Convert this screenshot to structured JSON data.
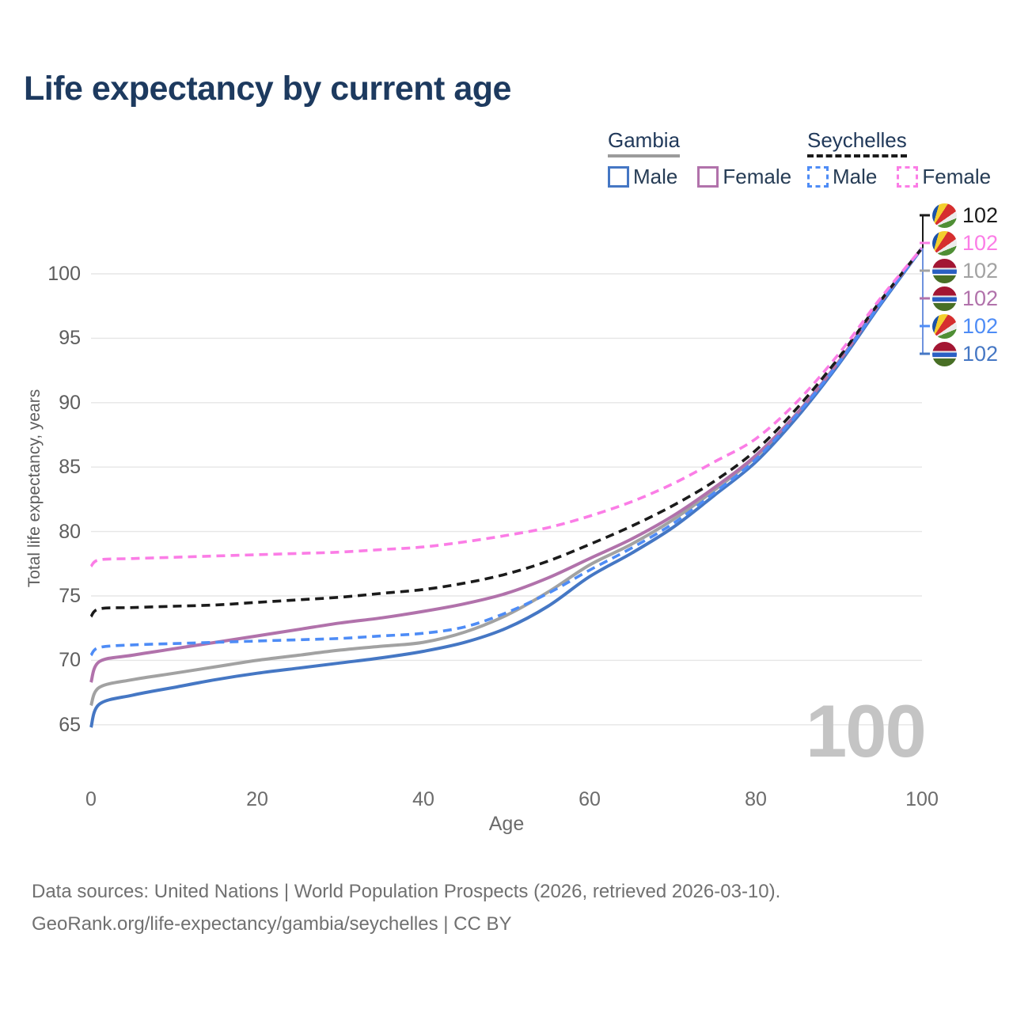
{
  "title": "Life expectancy by current age",
  "legend": {
    "groups": [
      {
        "name": "Gambia",
        "underline": {
          "style": "solid",
          "color": "#9b9b9b"
        },
        "items": [
          {
            "label": "Male",
            "style": "solid",
            "color": "#4577c4"
          },
          {
            "label": "Female",
            "style": "solid",
            "color": "#b172ab"
          }
        ]
      },
      {
        "name": "Seychelles",
        "underline": {
          "style": "dashed",
          "color": "#1b1b1b"
        },
        "items": [
          {
            "label": "Male",
            "style": "dashed",
            "color": "#4e8cf6"
          },
          {
            "label": "Female",
            "style": "dashed",
            "color": "#fb7de6"
          }
        ]
      }
    ]
  },
  "watermark": "100",
  "footer": {
    "line1": "Data sources: United Nations | World Population Prospects (2026, retrieved 2026-03-10).",
    "line2": "GeoRank.org/life-expectancy/gambia/seychelles | CC BY"
  },
  "chart_data": {
    "type": "line",
    "title": "Life expectancy by current age",
    "xlabel": "Age",
    "ylabel": "Total life expectancy, years",
    "x_ticks": [
      0,
      20,
      40,
      60,
      80,
      100
    ],
    "y_ticks": [
      65,
      70,
      75,
      80,
      85,
      90,
      95,
      100
    ],
    "xlim": [
      0,
      100
    ],
    "ylim": [
      63,
      103
    ],
    "grid": "horizontal-only",
    "legend_position": "top-right",
    "ages": [
      0,
      1,
      5,
      10,
      15,
      20,
      25,
      30,
      35,
      40,
      45,
      50,
      55,
      60,
      65,
      70,
      75,
      80,
      85,
      90,
      95,
      100
    ],
    "series": [
      {
        "id": "gambia-all",
        "name": "Gambia - Both sexes",
        "color": "#a2a2a2",
        "dashed": false,
        "width": 4,
        "values": [
          66.5,
          67.9,
          68.5,
          69,
          69.5,
          70,
          70.4,
          70.8,
          71.1,
          71.4,
          72.2,
          73.5,
          75.3,
          77.4,
          79,
          80.9,
          83.2,
          85.8,
          89,
          93.1,
          97.7,
          102
        ]
      },
      {
        "id": "gambia-male",
        "name": "Gambia - Male",
        "color": "#4577c4",
        "dashed": false,
        "width": 4,
        "values": [
          64.8,
          66.6,
          67.3,
          67.9,
          68.5,
          69,
          69.4,
          69.8,
          70.2,
          70.7,
          71.4,
          72.5,
          74.2,
          76.5,
          78.3,
          80.3,
          82.8,
          85.4,
          88.9,
          93,
          97.6,
          102
        ]
      },
      {
        "id": "gambia-female",
        "name": "Gambia - Female",
        "color": "#b172ab",
        "dashed": false,
        "width": 4,
        "values": [
          68.3,
          69.9,
          70.4,
          70.9,
          71.4,
          71.9,
          72.4,
          72.9,
          73.3,
          73.8,
          74.4,
          75.2,
          76.4,
          77.9,
          79.4,
          81.2,
          83.4,
          85.9,
          89.2,
          93.2,
          97.8,
          102
        ]
      },
      {
        "id": "seychelles-all",
        "name": "Seychelles - Both sexes",
        "color": "#1b1b1b",
        "dashed": true,
        "width": 3.6,
        "values": [
          73.4,
          74,
          74.1,
          74.2,
          74.3,
          74.5,
          74.7,
          74.9,
          75.2,
          75.5,
          76,
          76.7,
          77.7,
          79,
          80.4,
          82,
          83.9,
          86.3,
          89.6,
          93.5,
          97.9,
          102
        ]
      },
      {
        "id": "seychelles-male",
        "name": "Seychelles - Male",
        "color": "#4e8cf6",
        "dashed": true,
        "width": 3.6,
        "values": [
          70.4,
          71,
          71.2,
          71.3,
          71.4,
          71.5,
          71.6,
          71.7,
          71.9,
          72.1,
          72.6,
          73.7,
          75.2,
          77,
          78.7,
          80.6,
          83,
          85.6,
          89.1,
          93.1,
          97.7,
          102
        ]
      },
      {
        "id": "seychelles-female",
        "name": "Seychelles - Female",
        "color": "#fb7de6",
        "dashed": true,
        "width": 3.6,
        "values": [
          77.3,
          77.8,
          77.9,
          78,
          78.1,
          78.2,
          78.3,
          78.4,
          78.6,
          78.8,
          79.2,
          79.7,
          80.3,
          81.2,
          82.3,
          83.7,
          85.4,
          87.2,
          90.1,
          93.8,
          98.1,
          102
        ]
      }
    ],
    "end_labels": [
      {
        "icon": "seychelles-flag-icon",
        "flag": "seychelles",
        "value": "102",
        "color": "#1b1b1b",
        "series": "seychelles-all"
      },
      {
        "icon": "seychelles-flag-icon",
        "flag": "seychelles",
        "value": "102",
        "color": "#fb7de6",
        "series": "seychelles-female"
      },
      {
        "icon": "gambia-flag-icon",
        "flag": "gambia",
        "value": "102",
        "color": "#a2a2a2",
        "series": "gambia-all"
      },
      {
        "icon": "gambia-flag-icon",
        "flag": "gambia",
        "value": "102",
        "color": "#b172ab",
        "series": "gambia-female"
      },
      {
        "icon": "seychelles-flag-icon",
        "flag": "seychelles",
        "value": "102",
        "color": "#4e8cf6",
        "series": "seychelles-male"
      },
      {
        "icon": "gambia-flag-icon",
        "flag": "gambia",
        "value": "102",
        "color": "#4577c4",
        "series": "gambia-male"
      }
    ]
  }
}
